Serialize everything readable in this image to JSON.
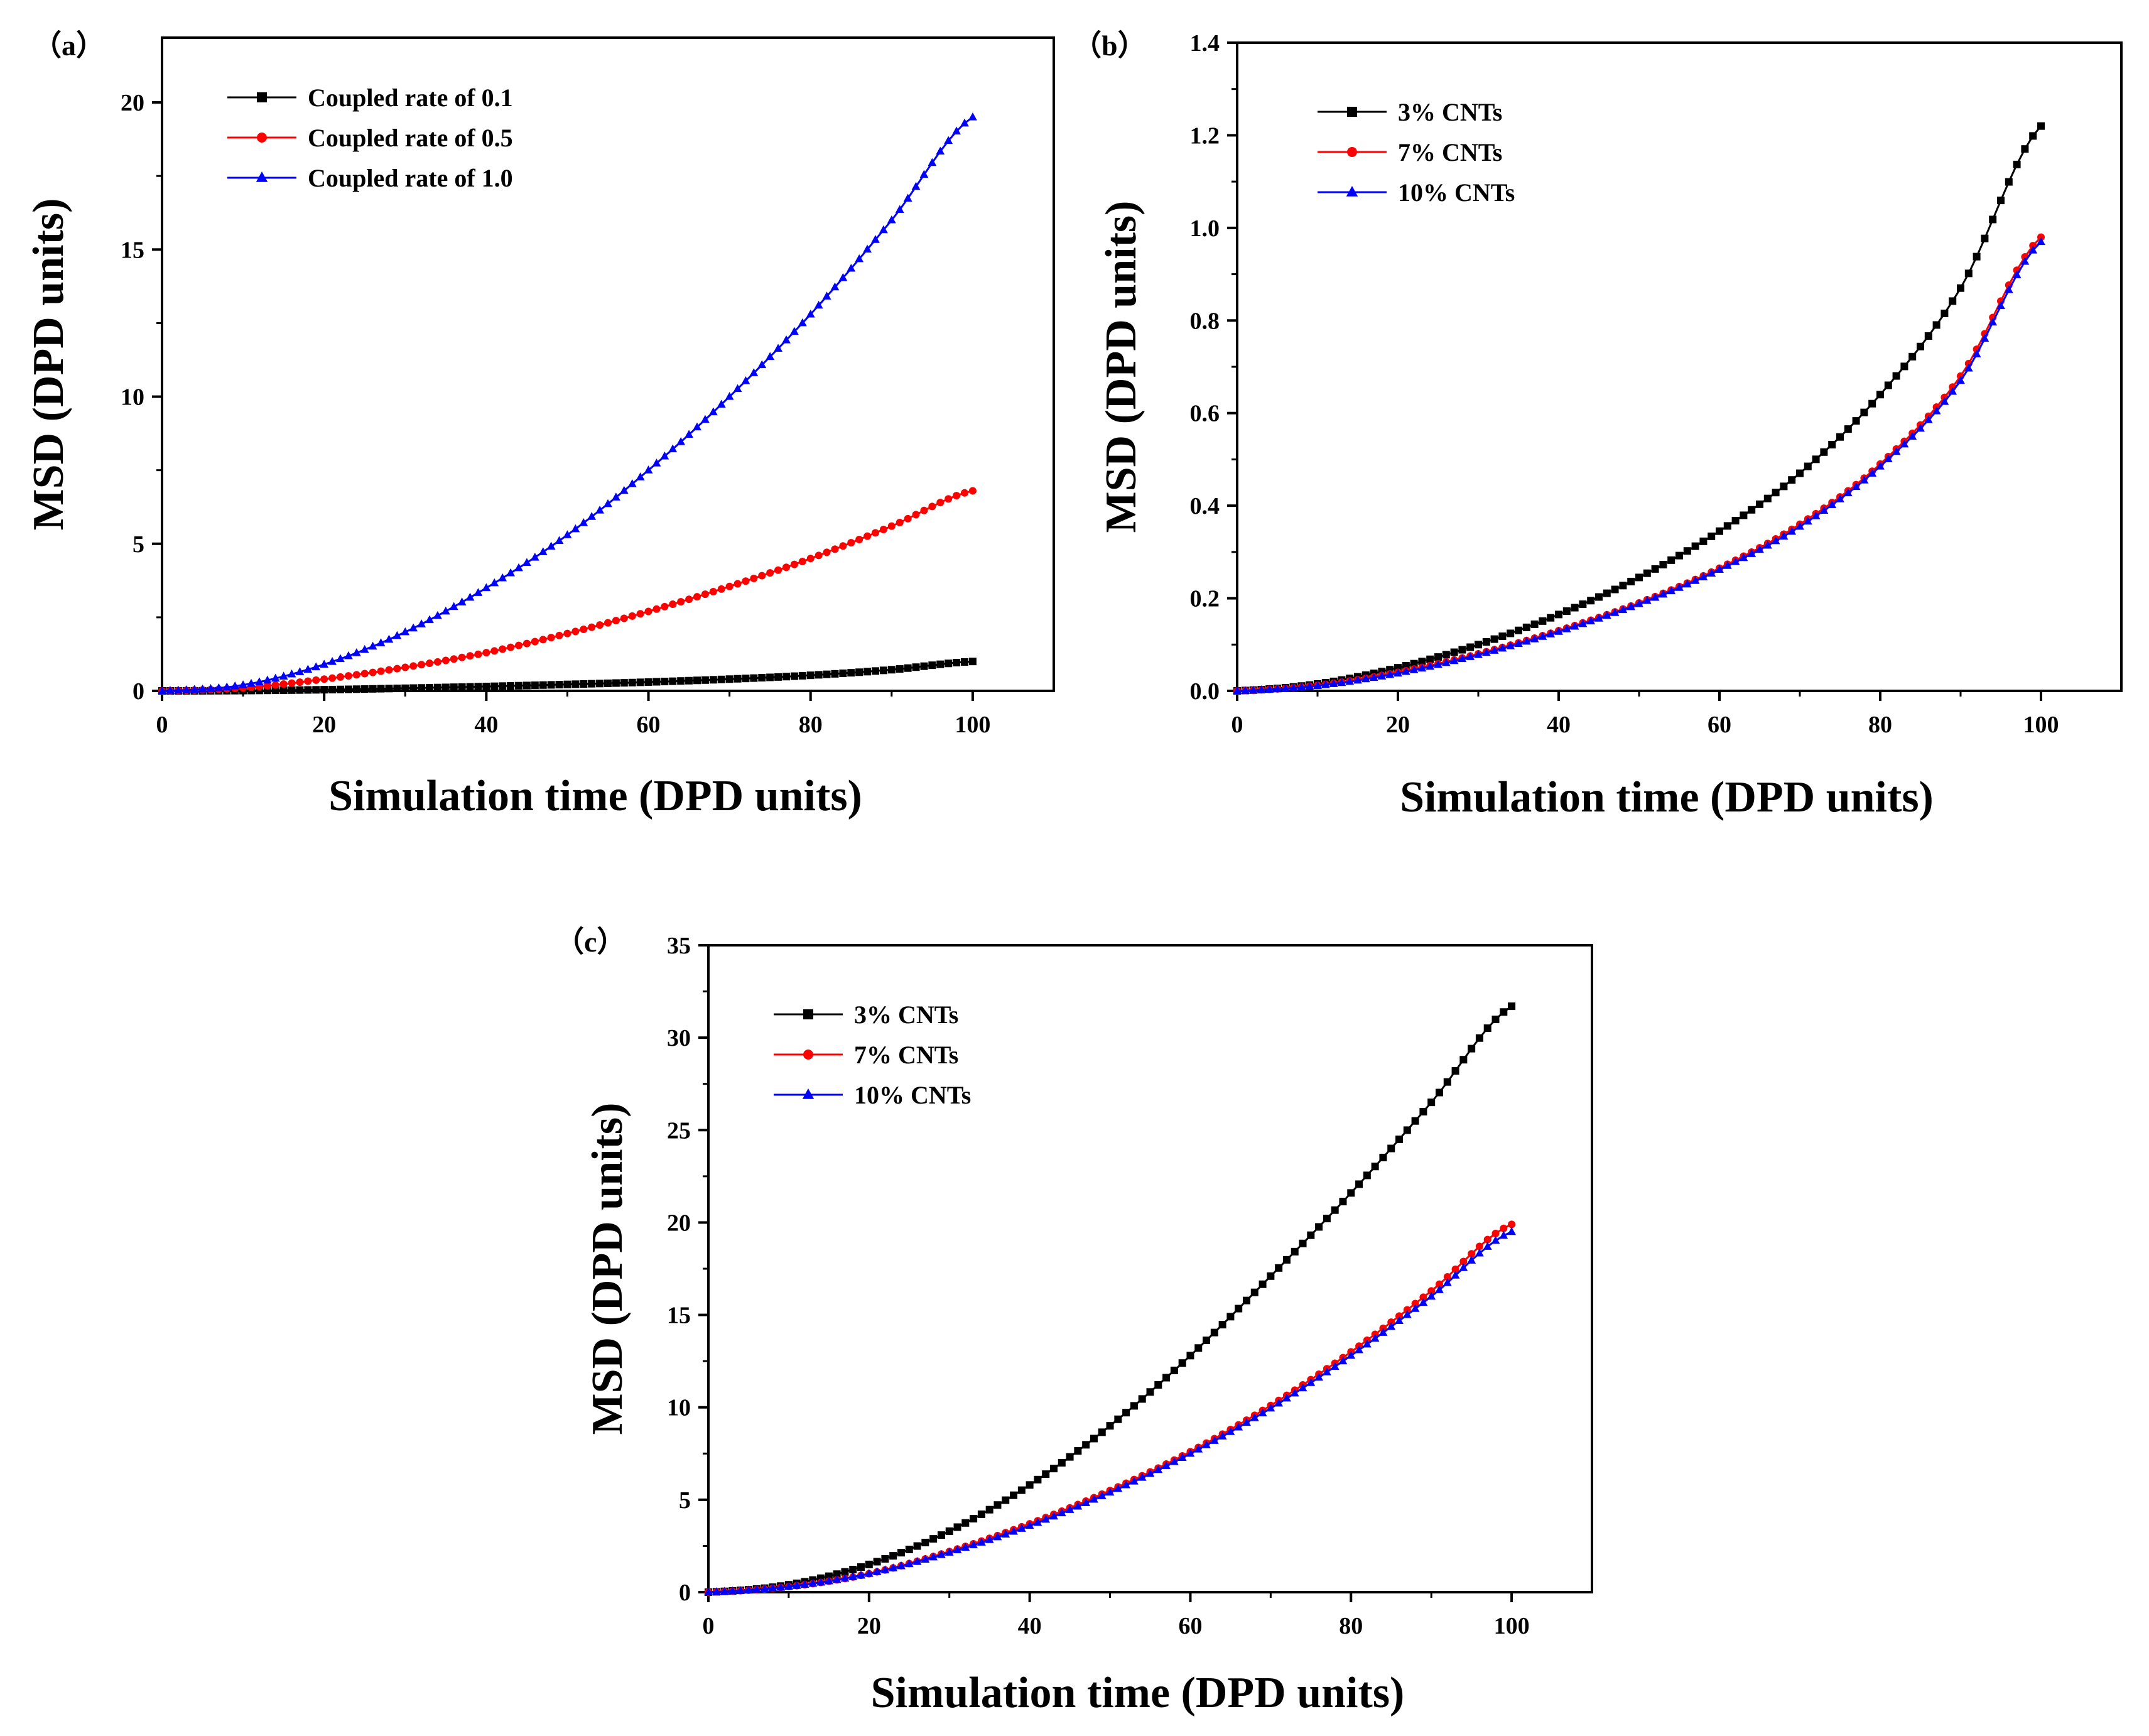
{
  "chart_data": [
    {
      "type": "line",
      "panel_label": "（a）",
      "xlabel": "Simulation time (DPD units)",
      "ylabel": "MSD (DPD units)",
      "xlim": [
        0,
        110
      ],
      "ylim": [
        0,
        22.2
      ],
      "xticks": [
        "0",
        "20",
        "40",
        "60",
        "80",
        "100"
      ],
      "yticks": [
        "0",
        "5",
        "10",
        "15",
        "20"
      ],
      "legend_position": "top-left",
      "series": [
        {
          "name": "Coupled rate of 0.1",
          "color": "#000000",
          "marker": "square",
          "x": [
            0,
            10,
            20,
            30,
            40,
            50,
            60,
            70,
            80,
            90,
            100
          ],
          "y": [
            0,
            0.01,
            0.04,
            0.09,
            0.15,
            0.22,
            0.3,
            0.4,
            0.53,
            0.72,
            1.0
          ]
        },
        {
          "name": "Coupled rate of 0.5",
          "color": "#ff0000",
          "marker": "circle",
          "x": [
            0,
            10,
            20,
            30,
            40,
            50,
            60,
            70,
            80,
            90,
            100
          ],
          "y": [
            0,
            0.1,
            0.4,
            0.8,
            1.3,
            1.95,
            2.7,
            3.55,
            4.5,
            5.6,
            6.8
          ]
        },
        {
          "name": "Coupled rate of 1.0",
          "color": "#0000ff",
          "marker": "triangle",
          "x": [
            0,
            10,
            20,
            30,
            40,
            50,
            60,
            70,
            80,
            90,
            100
          ],
          "y": [
            0,
            0.2,
            0.9,
            2.0,
            3.5,
            5.3,
            7.5,
            10.0,
            12.8,
            16.0,
            19.5
          ]
        }
      ]
    },
    {
      "type": "line",
      "panel_label": "（b）",
      "xlabel": "Simulation time (DPD units)",
      "ylabel": "MSD (DPD units)",
      "xlim": [
        0,
        110
      ],
      "ylim": [
        0,
        1.4
      ],
      "xticks": [
        "0",
        "20",
        "40",
        "60",
        "80",
        "100"
      ],
      "yticks": [
        "0.0",
        "0.2",
        "0.4",
        "0.6",
        "0.8",
        "1.0",
        "1.2",
        "1.4"
      ],
      "legend_position": "top-left",
      "series": [
        {
          "name": "3% CNTs",
          "color": "#000000",
          "marker": "square",
          "x": [
            0,
            10,
            20,
            30,
            40,
            50,
            60,
            70,
            80,
            90,
            100
          ],
          "y": [
            0,
            0.015,
            0.05,
            0.1,
            0.165,
            0.245,
            0.345,
            0.47,
            0.64,
            0.87,
            1.22
          ]
        },
        {
          "name": "7% CNTs",
          "color": "#ff0000",
          "marker": "circle",
          "x": [
            0,
            10,
            20,
            30,
            40,
            50,
            60,
            70,
            80,
            90,
            100
          ],
          "y": [
            0,
            0.012,
            0.04,
            0.08,
            0.13,
            0.19,
            0.265,
            0.36,
            0.49,
            0.68,
            0.98
          ]
        },
        {
          "name": "10% CNTs",
          "color": "#0000ff",
          "marker": "triangle",
          "x": [
            0,
            10,
            20,
            30,
            40,
            50,
            60,
            70,
            80,
            90,
            100
          ],
          "y": [
            0,
            0.011,
            0.038,
            0.078,
            0.128,
            0.188,
            0.262,
            0.355,
            0.485,
            0.67,
            0.97
          ]
        }
      ]
    },
    {
      "type": "line",
      "panel_label": "（c）",
      "xlabel": "Simulation time (DPD units)",
      "ylabel": "MSD (DPD units)",
      "xlim": [
        0,
        110
      ],
      "ylim": [
        0,
        35
      ],
      "xticks": [
        "0",
        "20",
        "40",
        "60",
        "80",
        "100"
      ],
      "yticks": [
        "0",
        "5",
        "10",
        "15",
        "20",
        "25",
        "30",
        "35"
      ],
      "legend_position": "top-left",
      "series": [
        {
          "name": "3% CNTs",
          "color": "#000000",
          "marker": "square",
          "x": [
            0,
            10,
            20,
            30,
            40,
            50,
            60,
            70,
            80,
            90,
            100
          ],
          "y": [
            0,
            0.4,
            1.5,
            3.3,
            5.8,
            9.0,
            12.8,
            17.1,
            21.6,
            26.5,
            31.7
          ]
        },
        {
          "name": "7% CNTs",
          "color": "#ff0000",
          "marker": "circle",
          "x": [
            0,
            10,
            20,
            30,
            40,
            50,
            60,
            70,
            80,
            90,
            100
          ],
          "y": [
            0,
            0.3,
            1.0,
            2.2,
            3.7,
            5.5,
            7.6,
            10.1,
            13.0,
            16.3,
            19.9
          ]
        },
        {
          "name": "10% CNTs",
          "color": "#0000ff",
          "marker": "triangle",
          "x": [
            0,
            10,
            20,
            30,
            40,
            50,
            60,
            70,
            80,
            90,
            100
          ],
          "y": [
            0,
            0.3,
            1.0,
            2.15,
            3.6,
            5.4,
            7.5,
            9.95,
            12.8,
            16.0,
            19.5
          ]
        }
      ]
    }
  ]
}
